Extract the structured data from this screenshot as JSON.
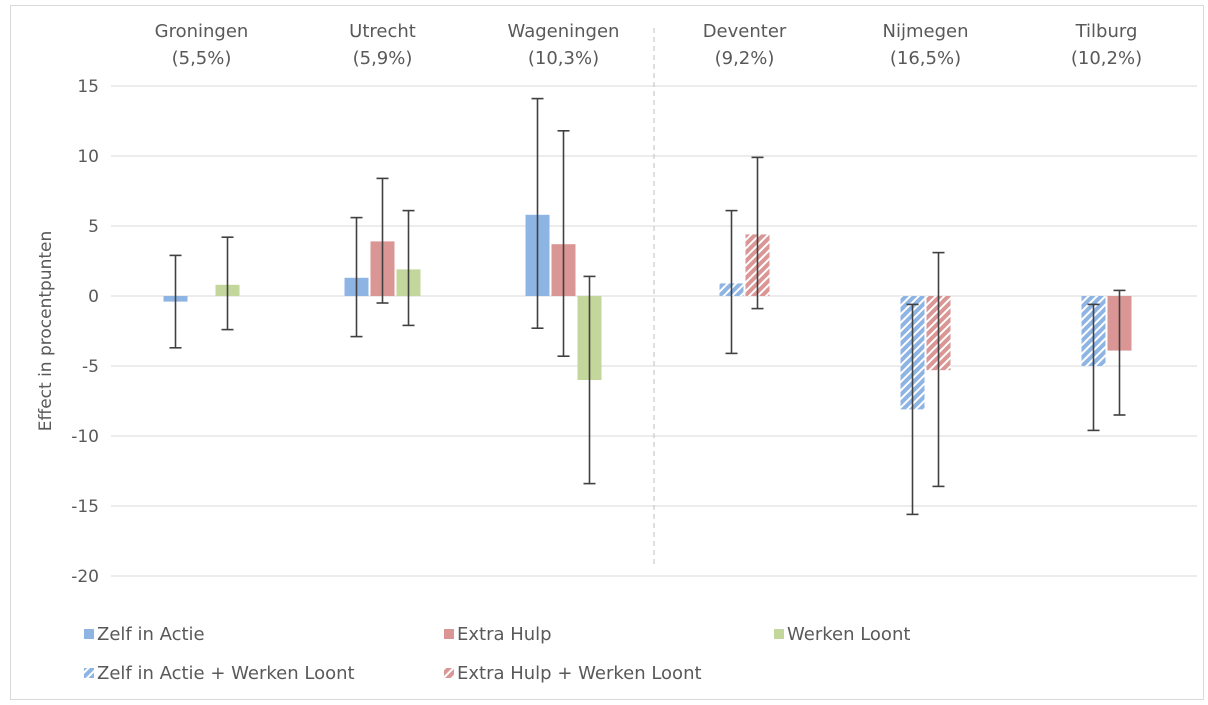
{
  "chart_data": {
    "type": "bar",
    "ylabel": "Effect in procentpunten",
    "ylim": [
      -20,
      15
    ],
    "yticks": [
      15,
      10,
      5,
      0,
      -5,
      -10,
      -15,
      -20
    ],
    "ytick_labels": [
      "15",
      "10",
      "5",
      "0",
      "-5",
      "-10",
      "-15",
      "-20"
    ],
    "grid": true,
    "legend_position": "bottom",
    "categories": [
      {
        "name": "Groningen",
        "sub": "(5,5%)"
      },
      {
        "name": "Utrecht",
        "sub": "(5,9%)"
      },
      {
        "name": "Wageningen",
        "sub": "(10,3%)"
      },
      {
        "name": "Deventer",
        "sub": "(9,2%)"
      },
      {
        "name": "Nijmegen",
        "sub": "(16,5%)"
      },
      {
        "name": "Tilburg",
        "sub": "(10,2%)"
      }
    ],
    "separator_after_category": 2,
    "series": [
      {
        "name": "Zelf in Actie",
        "color": "#8eb4e3",
        "hatched": false,
        "values": [
          -0.4,
          1.3,
          5.8,
          null,
          null,
          null
        ],
        "ci": [
          [
            -3.7,
            2.9
          ],
          [
            -2.9,
            5.6
          ],
          [
            -2.3,
            14.1
          ],
          null,
          null,
          null
        ]
      },
      {
        "name": "Extra Hulp",
        "color": "#d99694",
        "hatched": false,
        "values": [
          null,
          3.9,
          3.7,
          null,
          null,
          -3.9
        ],
        "ci": [
          null,
          [
            -0.5,
            8.4
          ],
          [
            -4.3,
            11.8
          ],
          null,
          null,
          [
            -8.5,
            0.4
          ]
        ]
      },
      {
        "name": "Werken Loont",
        "color": "#c3d69b",
        "hatched": false,
        "values": [
          0.8,
          1.9,
          -6.0,
          null,
          null,
          null
        ],
        "ci": [
          [
            -2.4,
            4.2
          ],
          [
            -2.1,
            6.1
          ],
          [
            -13.4,
            1.4
          ],
          null,
          null,
          null
        ]
      },
      {
        "name": "Zelf in Actie + Werken Loont",
        "color": "#8eb4e3",
        "hatched": true,
        "values": [
          null,
          null,
          null,
          0.9,
          -8.1,
          -5.0
        ],
        "ci": [
          null,
          null,
          null,
          [
            -4.1,
            6.1
          ],
          [
            -15.6,
            -0.6
          ],
          [
            -9.6,
            -0.6
          ]
        ]
      },
      {
        "name": "Extra Hulp + Werken Loont",
        "color": "#d99694",
        "hatched": true,
        "values": [
          null,
          null,
          null,
          4.4,
          -5.3,
          null
        ],
        "ci": [
          null,
          null,
          null,
          [
            -0.9,
            9.9
          ],
          [
            -13.6,
            3.1
          ],
          null
        ]
      }
    ],
    "plot_order": [
      [
        0,
        1,
        2
      ],
      [
        0,
        1,
        2
      ],
      [
        0,
        1,
        2
      ],
      [
        3,
        4
      ],
      [
        3,
        4
      ],
      [
        3,
        1
      ]
    ]
  }
}
